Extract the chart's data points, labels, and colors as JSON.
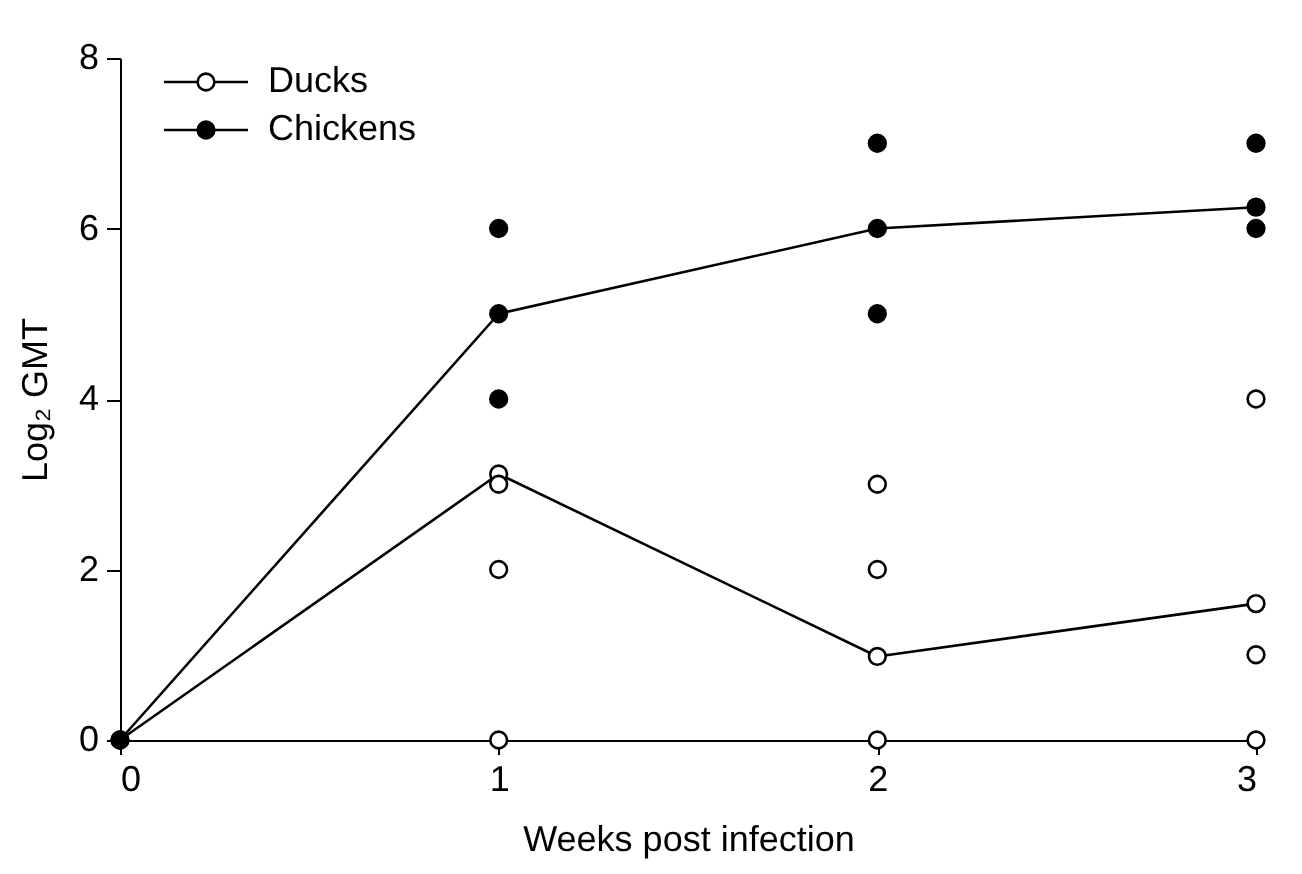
{
  "chart_data": {
    "type": "line",
    "xlabel": "Weeks post infection",
    "ylabel": "Log₂ GMT",
    "xlim": [
      0,
      3
    ],
    "xticks": [
      0,
      1,
      2,
      3
    ],
    "ylim": [
      0,
      8
    ],
    "yticks": [
      0,
      2,
      4,
      6,
      8
    ],
    "grid": false,
    "legend": "top left",
    "marker": "circle",
    "line_style": "solid",
    "series": [
      {
        "name": "Ducks",
        "color": "#000000",
        "x": [
          0,
          1,
          2,
          3
        ],
        "values": [
          0,
          3.12,
          0.98,
          1.6
        ]
      },
      {
        "name": "Chickens",
        "color": "#000000",
        "x": [
          0,
          1,
          2,
          3
        ],
        "values": [
          0,
          5,
          6,
          6.25
        ]
      },
      {
        "type": "scatter",
        "color": "#000000",
        "x": [
          1,
          1,
          1,
          2,
          2,
          2,
          3,
          3,
          3
        ],
        "values": [
          3,
          2,
          0,
          3,
          2,
          0,
          4,
          1,
          0
        ]
      },
      {
        "type": "scatter",
        "color": "#000000",
        "x": [
          1,
          1,
          2,
          2,
          3,
          3
        ],
        "values": [
          6,
          4,
          7,
          5,
          7,
          6
        ]
      }
    ]
  }
}
